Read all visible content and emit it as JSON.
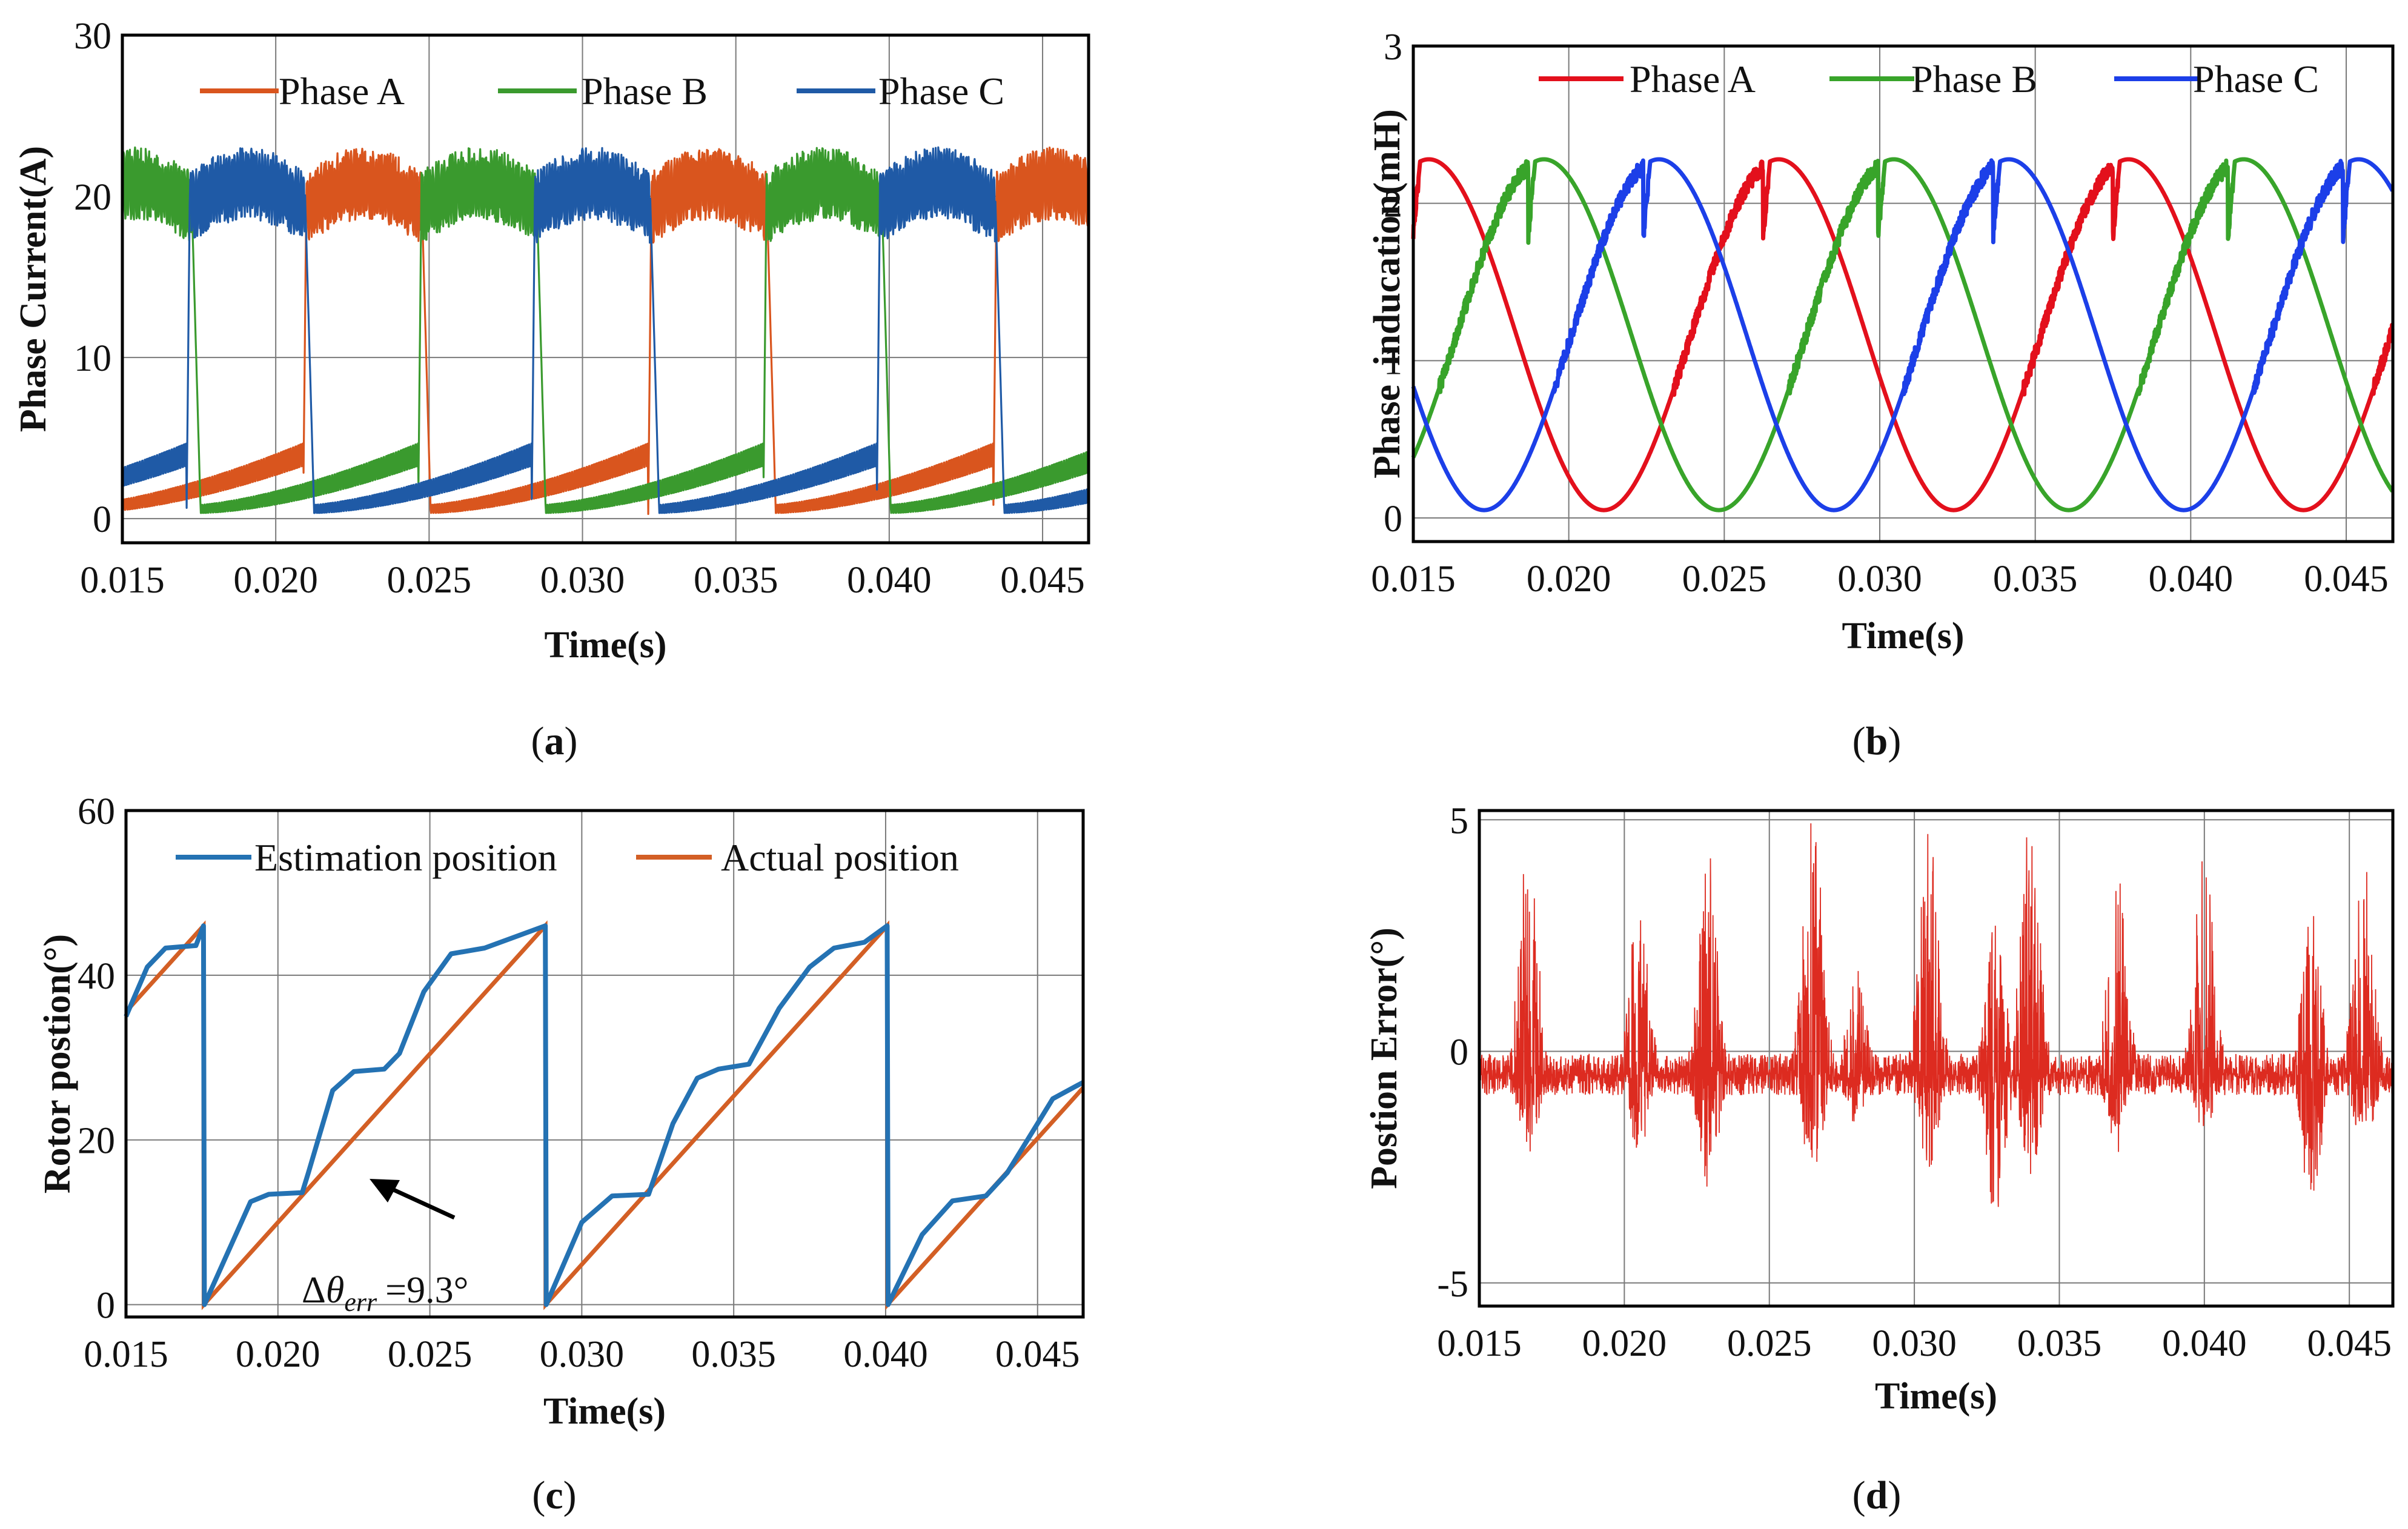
{
  "colors": {
    "a_orange": "#d9551e",
    "b_green": "#3a9a2e",
    "c_blue": "#1f5aa6",
    "red": "#e3101c",
    "green": "#38a42a",
    "blue": "#1c3fe8",
    "est_blue": "#2472b3",
    "act_orange": "#d35f25",
    "err_red": "#dd2b20",
    "grid": "#7a7a7a",
    "axis": "#000000"
  },
  "chart_data": [
    {
      "id": "a",
      "type": "line",
      "caption": "a",
      "xlabel": "Time(s)",
      "ylabel": "Phase Current(A)",
      "xlim": [
        0.015,
        0.0465
      ],
      "ylim": [
        -1.5,
        30
      ],
      "xticks": [
        "0.015",
        "0.020",
        "0.025",
        "0.030",
        "0.035",
        "0.040",
        "0.045"
      ],
      "yticks": [
        "0",
        "10",
        "20",
        "30"
      ],
      "legend": [
        "Phase A",
        "Phase B",
        "Phase C"
      ],
      "legend_position": "top",
      "phase_period_s": 0.01125,
      "conduction_high_A": 20.5,
      "ripple_A": 2.5,
      "series": [
        {
          "name": "Phase A",
          "color_key": "a_orange",
          "on_time_s": 0.021
        },
        {
          "name": "Phase B",
          "color_key": "b_green",
          "on_time_s": 0.0135
        },
        {
          "name": "Phase C",
          "color_key": "c_blue",
          "on_time_s": 0.0172
        }
      ]
    },
    {
      "id": "b",
      "type": "line",
      "caption": "b",
      "xlabel": "Time(s)",
      "ylabel": "Phase  inducation(mH)",
      "xlim": [
        0.015,
        0.0465
      ],
      "ylim": [
        -0.15,
        3
      ],
      "xticks": [
        "0.015",
        "0.020",
        "0.025",
        "0.030",
        "0.035",
        "0.040",
        "0.045"
      ],
      "yticks": [
        "0",
        "1",
        "2",
        "3"
      ],
      "legend": [
        "Phase A",
        "Phase B",
        "Phase C"
      ],
      "legend_position": "top",
      "period_s": 0.01125,
      "l_min_mH": 0.05,
      "l_max_mH": 2.28,
      "series": [
        {
          "name": "Phase A",
          "color_key": "red",
          "peak_time_s": 0.0155
        },
        {
          "name": "Phase B",
          "color_key": "green",
          "peak_time_s": 0.0192
        },
        {
          "name": "Phase C",
          "color_key": "blue",
          "peak_time_s": 0.0229
        }
      ]
    },
    {
      "id": "c",
      "type": "line",
      "caption": "c",
      "xlabel": "Time(s)",
      "ylabel": "Rotor postion(°)",
      "xlim": [
        0.015,
        0.0465
      ],
      "ylim": [
        -1.5,
        60
      ],
      "xticks": [
        "0.015",
        "0.020",
        "0.025",
        "0.030",
        "0.035",
        "0.040",
        "0.045"
      ],
      "yticks": [
        "0",
        "20",
        "40",
        "60"
      ],
      "legend": [
        "Estimation position",
        "Actual position"
      ],
      "legend_position": "top",
      "annotation": "Δθerr = 9.3°",
      "annotation_parts": {
        "delta": "Δ",
        "theta": "θ",
        "sub": "err",
        "value": "=9.3°"
      },
      "actual": {
        "name": "Actual position",
        "color_key": "act_orange",
        "resets_s": [
          0.01755,
          0.0288,
          0.04005
        ],
        "peak_deg": 46,
        "slope_deg_per_s": 4089
      },
      "estimated": {
        "name": "Estimation position",
        "color_key": "est_blue",
        "plateaus_deg": [
          13,
          28.5,
          43.5
        ],
        "points": [
          [
            0.015,
            35
          ],
          [
            0.0157,
            41
          ],
          [
            0.0163,
            43.3
          ],
          [
            0.0173,
            43.6
          ],
          [
            0.01755,
            46
          ],
          [
            0.01758,
            0
          ],
          [
            0.0191,
            12.5
          ],
          [
            0.0197,
            13.4
          ],
          [
            0.0208,
            13.6
          ],
          [
            0.021,
            16
          ],
          [
            0.0218,
            26
          ],
          [
            0.0225,
            28.3
          ],
          [
            0.0235,
            28.6
          ],
          [
            0.024,
            30.5
          ],
          [
            0.0248,
            38
          ],
          [
            0.0257,
            42.6
          ],
          [
            0.0268,
            43.3
          ],
          [
            0.0288,
            46
          ],
          [
            0.02883,
            0
          ],
          [
            0.03,
            10
          ],
          [
            0.031,
            13.2
          ],
          [
            0.0322,
            13.4
          ],
          [
            0.033,
            22
          ],
          [
            0.0338,
            27.5
          ],
          [
            0.0345,
            28.6
          ],
          [
            0.0355,
            29.2
          ],
          [
            0.0365,
            36
          ],
          [
            0.0375,
            41
          ],
          [
            0.0383,
            43.3
          ],
          [
            0.0393,
            44
          ],
          [
            0.04005,
            46
          ],
          [
            0.04008,
            0
          ],
          [
            0.0412,
            8.5
          ],
          [
            0.0422,
            12.6
          ],
          [
            0.0433,
            13.2
          ],
          [
            0.044,
            16
          ],
          [
            0.045,
            22
          ],
          [
            0.0455,
            25
          ],
          [
            0.0465,
            27
          ]
        ]
      }
    },
    {
      "id": "d",
      "type": "line",
      "caption": "d",
      "xlabel": "Time(s)",
      "ylabel": "Postion Error(°)",
      "xlim": [
        0.015,
        0.0465
      ],
      "ylim": [
        -5.5,
        5.2
      ],
      "xticks": [
        "0.015",
        "0.020",
        "0.025",
        "0.030",
        "0.035",
        "0.040",
        "0.045"
      ],
      "yticks": [
        "-5",
        "0",
        "5"
      ],
      "series_name": "Position error",
      "color_key": "err_red",
      "baseline_deg": -0.5,
      "bursts": [
        {
          "t": 0.0167,
          "pos": 4.6,
          "neg": -2.3
        },
        {
          "t": 0.0205,
          "pos": 3.6,
          "neg": -2.2
        },
        {
          "t": 0.0229,
          "pos": 4.3,
          "neg": -3.0
        },
        {
          "t": 0.0265,
          "pos": 5.2,
          "neg": -2.8
        },
        {
          "t": 0.028,
          "pos": 1.8,
          "neg": -1.6
        },
        {
          "t": 0.0305,
          "pos": 4.8,
          "neg": -2.6
        },
        {
          "t": 0.0328,
          "pos": 3.0,
          "neg": -3.6
        },
        {
          "t": 0.034,
          "pos": 5.1,
          "neg": -2.8
        },
        {
          "t": 0.037,
          "pos": 4.0,
          "neg": -2.2
        },
        {
          "t": 0.04,
          "pos": 4.5,
          "neg": -1.8
        },
        {
          "t": 0.0437,
          "pos": 3.0,
          "neg": -3.4
        },
        {
          "t": 0.0455,
          "pos": 4.6,
          "neg": -2.6
        }
      ]
    }
  ]
}
